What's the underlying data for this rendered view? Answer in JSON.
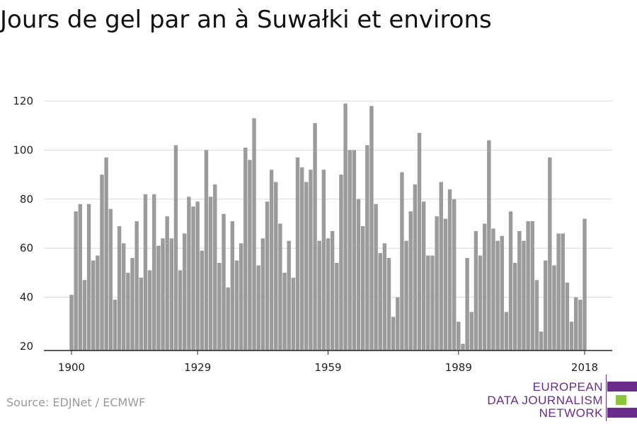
{
  "title": "Jours de gel par an à Suwałki et environs",
  "source": "Source: EDJNet / ECMWF",
  "logo": {
    "line1": "EUROPEAN",
    "line2": "DATA JOURNALISM",
    "line3": "NETWORK"
  },
  "colors": {
    "bar": "#9b9b9b",
    "grid": "#d9d9d9",
    "axis": "#222222",
    "logo_purple": "#6a2c8a",
    "logo_green": "#8cc63f"
  },
  "chart_data": {
    "type": "bar",
    "title": "Jours de gel par an à Suwałki et environs",
    "xlabel": "",
    "ylabel": "",
    "ylim": [
      20,
      120
    ],
    "xlim": [
      1900,
      2018
    ],
    "yticks": [
      20,
      40,
      60,
      80,
      100,
      120
    ],
    "xticks": [
      1900,
      1929,
      1959,
      1989,
      2018
    ],
    "grid": true,
    "start_year": 1900,
    "end_year": 2018,
    "values": [
      41,
      75,
      78,
      47,
      78,
      55,
      57,
      90,
      97,
      76,
      39,
      69,
      62,
      50,
      56,
      71,
      48,
      82,
      51,
      82,
      61,
      64,
      73,
      64,
      102,
      51,
      66,
      81,
      77,
      79,
      59,
      100,
      81,
      86,
      54,
      74,
      44,
      71,
      55,
      62,
      101,
      96,
      113,
      53,
      64,
      79,
      92,
      87,
      70,
      50,
      63,
      48,
      97,
      93,
      87,
      92,
      111,
      63,
      92,
      64,
      67,
      54,
      90,
      119,
      100,
      100,
      80,
      69,
      102,
      118,
      78,
      58,
      62,
      56,
      32,
      40,
      91,
      63,
      75,
      86,
      107,
      79,
      57,
      57,
      73,
      87,
      72,
      84,
      80,
      30,
      21,
      56,
      34,
      67,
      57,
      70,
      104,
      68,
      63,
      65,
      34,
      75,
      54,
      67,
      63,
      71,
      71,
      47,
      26,
      55,
      97,
      53,
      66,
      66,
      46,
      30,
      40,
      39,
      72
    ]
  }
}
